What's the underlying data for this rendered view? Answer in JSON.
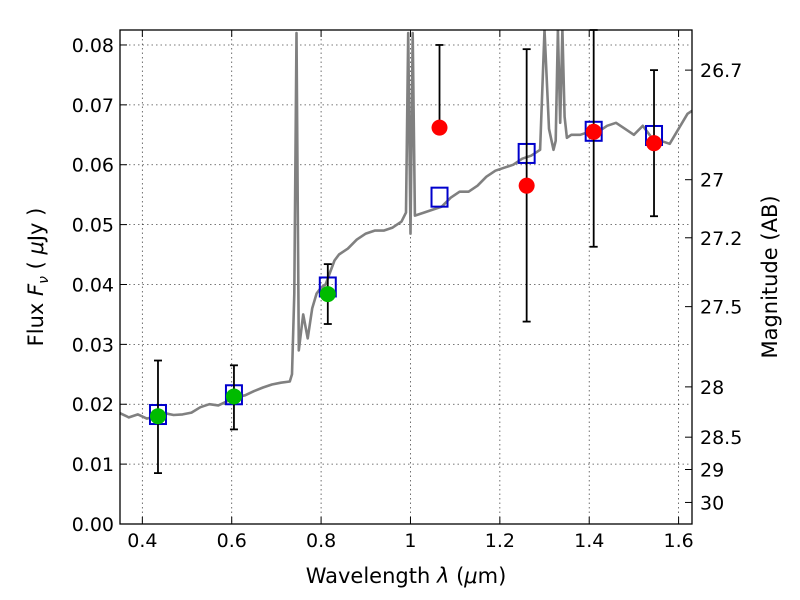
{
  "chart_data": {
    "type": "scatter",
    "xlabel_text": "Wavelength",
    "xlabel_symbol": "λ",
    "xlabel_unit_open": " (",
    "xlabel_unit_mu": "μ",
    "xlabel_unit_close": "m)",
    "ylabel_text": "Flux",
    "ylabel_symbol": "F",
    "ylabel_symbol_sub": "ν",
    "ylabel_unit_open": " ( ",
    "ylabel_unit_mu": "μ",
    "ylabel_unit_close": "Jy )",
    "y2label": "Magnitude (AB)",
    "xlim": [
      0.35,
      1.63
    ],
    "ylim": [
      0.0,
      0.0825
    ],
    "grid": true,
    "x_ticks": [
      0.4,
      0.6,
      0.8,
      1.0,
      1.2,
      1.4,
      1.6
    ],
    "x_tick_labels": [
      "0.4",
      "0.6",
      "0.8",
      "1",
      "1.2",
      "1.4",
      "1.6"
    ],
    "y_ticks": [
      0.0,
      0.01,
      0.02,
      0.03,
      0.04,
      0.05,
      0.06,
      0.07,
      0.08
    ],
    "y_tick_labels": [
      "0.00",
      "0.01",
      "0.02",
      "0.03",
      "0.04",
      "0.05",
      "0.06",
      "0.07",
      "0.08"
    ],
    "y2_ticks": [
      {
        "label": "26.7",
        "flux": 0.0758
      },
      {
        "label": "27",
        "flux": 0.0575
      },
      {
        "label": "27.2",
        "flux": 0.0478
      },
      {
        "label": "27.5",
        "flux": 0.0363
      },
      {
        "label": "28",
        "flux": 0.0229
      },
      {
        "label": "28.5",
        "flux": 0.0145
      },
      {
        "label": "29",
        "flux": 0.0091
      },
      {
        "label": "30",
        "flux": 0.0036
      }
    ],
    "series": [
      {
        "type": "line",
        "color": "#808080",
        "x": [
          0.35,
          0.37,
          0.39,
          0.41,
          0.43,
          0.45,
          0.47,
          0.49,
          0.51,
          0.53,
          0.55,
          0.57,
          0.59,
          0.61,
          0.63,
          0.65,
          0.67,
          0.69,
          0.71,
          0.73,
          0.735,
          0.74,
          0.745,
          0.75,
          0.755,
          0.76,
          0.77,
          0.78,
          0.79,
          0.8,
          0.81,
          0.82,
          0.83,
          0.84,
          0.85,
          0.86,
          0.88,
          0.9,
          0.92,
          0.94,
          0.96,
          0.98,
          0.99,
          0.995,
          1.0,
          1.005,
          1.01,
          1.03,
          1.05,
          1.07,
          1.09,
          1.11,
          1.13,
          1.15,
          1.17,
          1.19,
          1.21,
          1.23,
          1.25,
          1.27,
          1.29,
          1.3,
          1.31,
          1.32,
          1.325,
          1.33,
          1.335,
          1.34,
          1.345,
          1.35,
          1.36,
          1.38,
          1.4,
          1.42,
          1.44,
          1.46,
          1.48,
          1.5,
          1.52,
          1.54,
          1.56,
          1.58,
          1.6,
          1.62,
          1.63
        ],
        "y": [
          0.0185,
          0.0178,
          0.0183,
          0.0176,
          0.018,
          0.0185,
          0.0182,
          0.0183,
          0.0186,
          0.0195,
          0.02,
          0.0198,
          0.0205,
          0.0212,
          0.0215,
          0.0222,
          0.0228,
          0.0233,
          0.0236,
          0.0238,
          0.025,
          0.0385,
          0.082,
          0.029,
          0.032,
          0.035,
          0.031,
          0.036,
          0.0385,
          0.0395,
          0.04,
          0.042,
          0.044,
          0.045,
          0.0455,
          0.046,
          0.0475,
          0.0485,
          0.049,
          0.049,
          0.0495,
          0.0505,
          0.052,
          0.082,
          0.0485,
          0.082,
          0.0515,
          0.052,
          0.0525,
          0.053,
          0.0545,
          0.0555,
          0.0555,
          0.0565,
          0.058,
          0.059,
          0.0595,
          0.06,
          0.061,
          0.0615,
          0.0625,
          0.0825,
          0.066,
          0.0625,
          0.064,
          0.0825,
          0.067,
          0.0825,
          0.068,
          0.0645,
          0.065,
          0.065,
          0.0655,
          0.0655,
          0.0665,
          0.067,
          0.066,
          0.065,
          0.0665,
          0.0645,
          0.064,
          0.0635,
          0.066,
          0.0685,
          0.069
        ]
      },
      {
        "type": "model_squares",
        "color": "#0000cc",
        "x": [
          0.435,
          0.605,
          0.815,
          1.065,
          1.26,
          1.41,
          1.545
        ],
        "y": [
          0.0182,
          0.0215,
          0.0395,
          0.0545,
          0.0618,
          0.0655,
          0.0648
        ]
      },
      {
        "type": "points",
        "color": "#00bb00",
        "x": [
          0.435,
          0.605,
          0.815
        ],
        "y": [
          0.018,
          0.0213,
          0.0384
        ],
        "yerr_low": [
          0.0095,
          0.0055,
          0.005
        ],
        "yerr_high": [
          0.0093,
          0.0052,
          0.005
        ]
      },
      {
        "type": "points",
        "color": "#ff0000",
        "x": [
          1.065,
          1.26,
          1.41,
          1.545
        ],
        "y": [
          0.0662,
          0.0565,
          0.0655,
          0.0636
        ],
        "yerr_low": [
          0.0,
          0.0227,
          0.0192,
          0.0122
        ],
        "yerr_high": [
          0.0138,
          0.0228,
          0.017,
          0.0122
        ]
      }
    ]
  }
}
